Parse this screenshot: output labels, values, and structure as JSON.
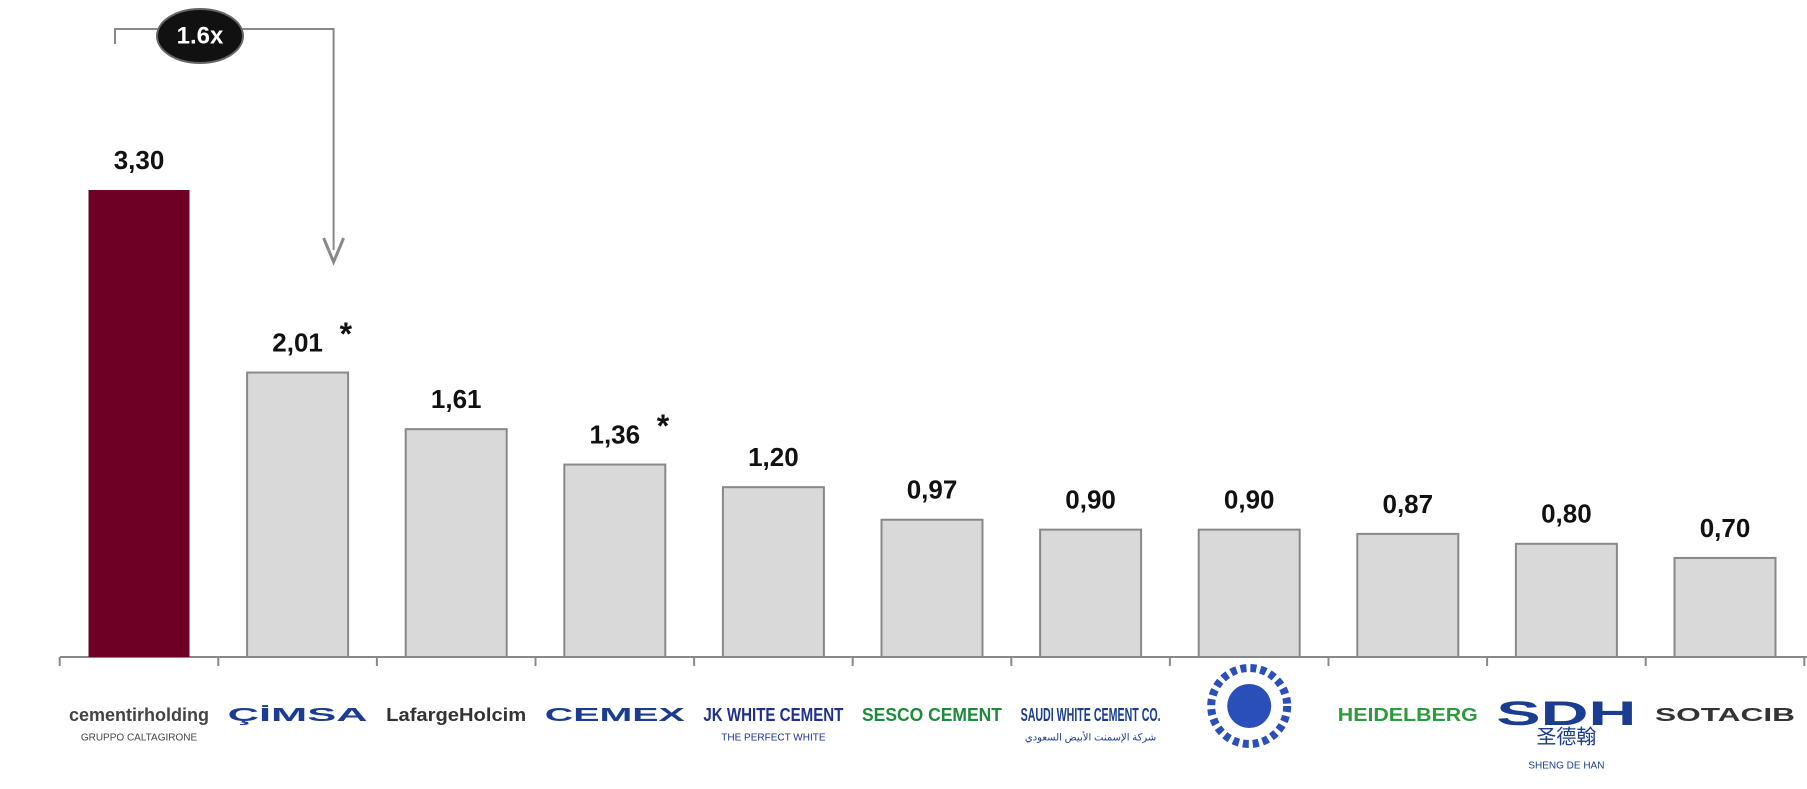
{
  "chart_data": {
    "type": "bar",
    "categories": [
      "cementirholding",
      "ÇİMSA",
      "LafargeHolcim",
      "CEMEX",
      "JK WHITE CEMENT",
      "SESCO CEMENT",
      "SAUDI WHITE CEMENT CO.",
      null,
      "HEIDELBERG",
      "SDH",
      "SOTACIB"
    ],
    "category_colors": [
      "#444444",
      "#1a3d8f",
      "#333333",
      "#1a3d8f",
      "#1f2f8f",
      "#1e8a3c",
      "#1a3d8f",
      "#2a4fb8",
      "#2e9a3e",
      "#1a3d8f",
      "#333333"
    ],
    "category_sublabels": [
      {
        "category": "cementirholding",
        "text": "GRUPPO CALTAGIRONE"
      },
      {
        "category": "JK WHITE CEMENT",
        "text": "THE PERFECT WHITE"
      },
      {
        "category": "SAUDI WHITE CEMENT CO.",
        "text": "شركة الإسمنت الأبيض السعودي"
      },
      {
        "category": "SDH",
        "text": "圣德翰"
      },
      {
        "category": "SDH",
        "text": "SHENG DE HAN"
      }
    ],
    "values": [
      3.3,
      2.01,
      1.61,
      1.36,
      1.2,
      0.97,
      0.9,
      0.9,
      0.87,
      0.8,
      0.7
    ],
    "value_labels": [
      "3,30",
      "2,01",
      "1,61",
      "1,36",
      "1,20",
      "0,97",
      "0,90",
      "0,90",
      "0,87",
      "0,80",
      "0,70"
    ],
    "colors": [
      "#6e0026",
      "#d9d9d9",
      "#d9d9d9",
      "#d9d9d9",
      "#d9d9d9",
      "#d9d9d9",
      "#d9d9d9",
      "#d9d9d9",
      "#d9d9d9",
      "#d9d9d9",
      "#d9d9d9"
    ],
    "annotations": [
      {
        "text": "*",
        "category": "ÇİMSA"
      },
      {
        "text": "*",
        "category": "CEMEX"
      }
    ],
    "comparison": {
      "text": "1.6x",
      "from": "cementirholding",
      "to": "ÇİMSA"
    }
  }
}
